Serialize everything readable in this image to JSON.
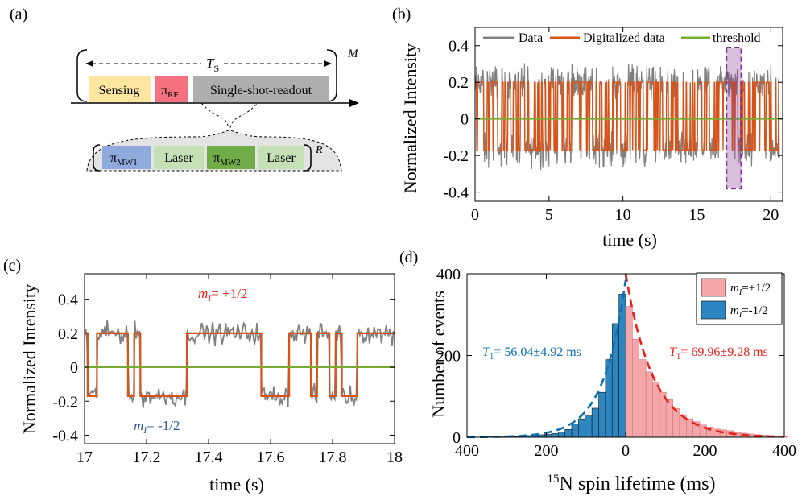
{
  "panel_labels": {
    "a": "(a)",
    "b": "(b)",
    "c": "(c)",
    "d": "(d)"
  },
  "colors": {
    "data": "#808080",
    "digital": "#D95319",
    "threshold": "#77AC30",
    "highlight": "#7E2F8E",
    "plus_half": "#F4A6A9",
    "minus_half": "#2E86C1",
    "fit_plus": "#E8221B",
    "fit_minus": "#0B6FB6",
    "text_plus": "#E8221B",
    "text_minus": "#2F5597",
    "sensing": "#FCE6A0",
    "pi_rf": "#F4727F",
    "readout": "#AEAEAE",
    "pi_mw1": "#8FAADC",
    "laser": "#C5E0B4",
    "pi_mw2": "#70AD47",
    "readout_cloud": "#E3E3E3"
  },
  "diagram": {
    "ts_label": "T",
    "ts_sub": "S",
    "m_label": "M",
    "r_label": "R",
    "sensing": "Sensing",
    "pi": "π",
    "pi_rf_sub": "RF",
    "readout": "Single-shot-readout",
    "pi_mw1_sub": "MW1",
    "laser": "Laser",
    "pi_mw2_sub": "MW2"
  },
  "chart_data": [
    {
      "panel": "b",
      "type": "line",
      "xlabel": "time (s)",
      "ylabel": "Normalized Intensity",
      "xlim": [
        0,
        20.8
      ],
      "ylim": [
        -0.45,
        0.5
      ],
      "xticks": [
        0,
        5,
        10,
        15,
        20
      ],
      "yticks": [
        -0.4,
        -0.2,
        0,
        0.2,
        0.4
      ],
      "legend": [
        "Data",
        "Digitalized data",
        "threshold"
      ],
      "legend_position": "top",
      "series": [
        {
          "name": "Data",
          "description_range": [
            -0.42,
            0.44
          ]
        },
        {
          "name": "Digitalized data",
          "levels": [
            0.2,
            -0.17
          ]
        },
        {
          "name": "threshold",
          "value": 0
        }
      ],
      "highlight_region": [
        17,
        18
      ]
    },
    {
      "panel": "c",
      "type": "line",
      "xlabel": "time (s)",
      "ylabel": "Normalized Intensity",
      "xlim": [
        17,
        18
      ],
      "ylim": [
        -0.45,
        0.55
      ],
      "xticks": [
        17,
        17.2,
        17.4,
        17.6,
        17.8,
        18
      ],
      "yticks": [
        -0.4,
        -0.2,
        0,
        0.2,
        0.4
      ],
      "annotations": {
        "plus": "m",
        "plus_sub": "I",
        "plus_rest": "= +1/2",
        "minus": "m",
        "minus_sub": "I",
        "minus_rest": "= -1/2"
      },
      "digital_segments": [
        [
          17.0,
          17.01,
          0.2
        ],
        [
          17.01,
          17.04,
          -0.17
        ],
        [
          17.04,
          17.14,
          0.2
        ],
        [
          17.14,
          17.16,
          -0.17
        ],
        [
          17.16,
          17.18,
          0.2
        ],
        [
          17.18,
          17.33,
          -0.17
        ],
        [
          17.33,
          17.57,
          0.2
        ],
        [
          17.57,
          17.66,
          -0.17
        ],
        [
          17.66,
          17.73,
          0.2
        ],
        [
          17.73,
          17.75,
          -0.17
        ],
        [
          17.75,
          17.79,
          0.2
        ],
        [
          17.79,
          17.81,
          -0.17
        ],
        [
          17.81,
          17.83,
          0.2
        ],
        [
          17.83,
          17.88,
          -0.17
        ],
        [
          17.88,
          18.0,
          0.2
        ]
      ]
    },
    {
      "panel": "d",
      "type": "bar",
      "xlabel_pre": "15",
      "xlabel": "N spin lifetime (ms)",
      "ylabel": "Number of events",
      "xlim": [
        -400,
        400
      ],
      "ylim": [
        0,
        400
      ],
      "xticks": [
        -400,
        -200,
        0,
        200,
        400
      ],
      "xtick_labels": [
        "400",
        "200",
        "0",
        "200",
        "400"
      ],
      "yticks": [
        0,
        200,
        400
      ],
      "bin_width": 17,
      "legend": [
        {
          "m": "m",
          "sub": "I",
          "rest": "=+1/2"
        },
        {
          "m": "m",
          "sub": "I",
          "rest": "=-1/2"
        }
      ],
      "legend_position": "top-right",
      "minus_half_counts": [
        1,
        1,
        1,
        2,
        2,
        3,
        4,
        5,
        6,
        7,
        9,
        13,
        19,
        32,
        45,
        52,
        71,
        110,
        190,
        278,
        350
      ],
      "plus_half_counts": [
        320,
        240,
        190,
        160,
        135,
        110,
        92,
        70,
        55,
        45,
        38,
        30,
        25,
        20,
        18,
        16,
        12,
        10,
        8,
        6,
        5,
        3,
        2,
        2
      ],
      "fit_minus_T1": {
        "t": "T",
        "sub": "1",
        "rest": "= 56.04±4.92 ms"
      },
      "fit_plus_T1": {
        "t": "T",
        "sub": "1",
        "rest": "= 69.96±9.28 ms"
      }
    }
  ]
}
